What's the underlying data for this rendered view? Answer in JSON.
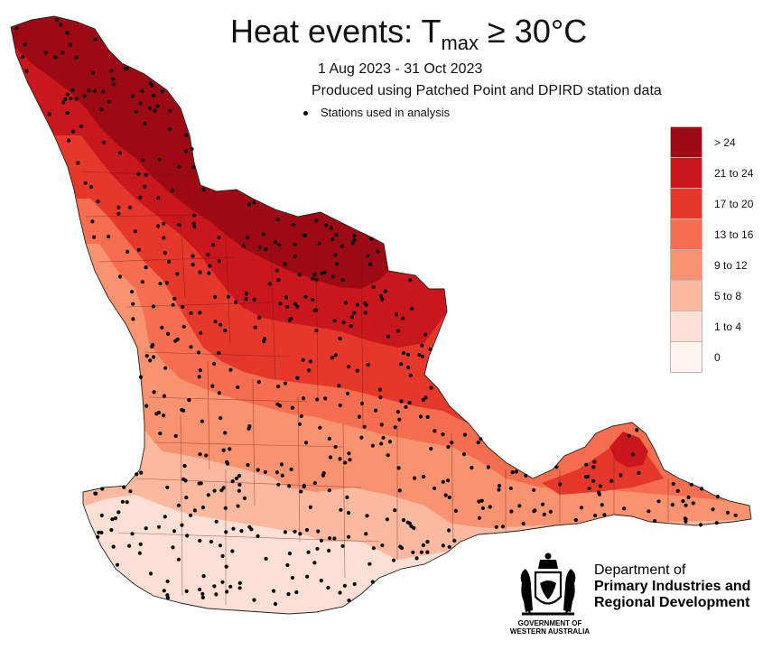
{
  "title": {
    "main": "Heat events:  T",
    "subscript": "max",
    "rest": " ≥  30°C"
  },
  "date_range": "1 Aug 2023 - 31 Oct 2023",
  "produced_by": "Produced using Patched Point and DPIRD station data",
  "station_legend_label": "Stations used in analysis",
  "legend": [
    {
      "label": "> 24",
      "color": "#9e0a13"
    },
    {
      "label": "21 to 24",
      "color": "#c9171d"
    },
    {
      "label": "17 to 20",
      "color": "#e6372b"
    },
    {
      "label": "13 to 16",
      "color": "#f46e4f"
    },
    {
      "label": "9 to 12",
      "color": "#f9926f"
    },
    {
      "label": "5 to 8",
      "color": "#fbbaa0"
    },
    {
      "label": "1 to 4",
      "color": "#fde0d3"
    },
    {
      "label": "0",
      "color": "#fff4ef"
    }
  ],
  "department": {
    "line1": "Department of",
    "line2": "Primary Industries and",
    "line3": "Regional Development",
    "gov_line1": "GOVERNMENT OF",
    "gov_line2": "WESTERN AUSTRALIA",
    "logo_icon": "wa-coat-of-arms-icon"
  },
  "map": {
    "region": "South West Land Division, Western Australia",
    "station_marker_icon": "station-dot-icon"
  }
}
